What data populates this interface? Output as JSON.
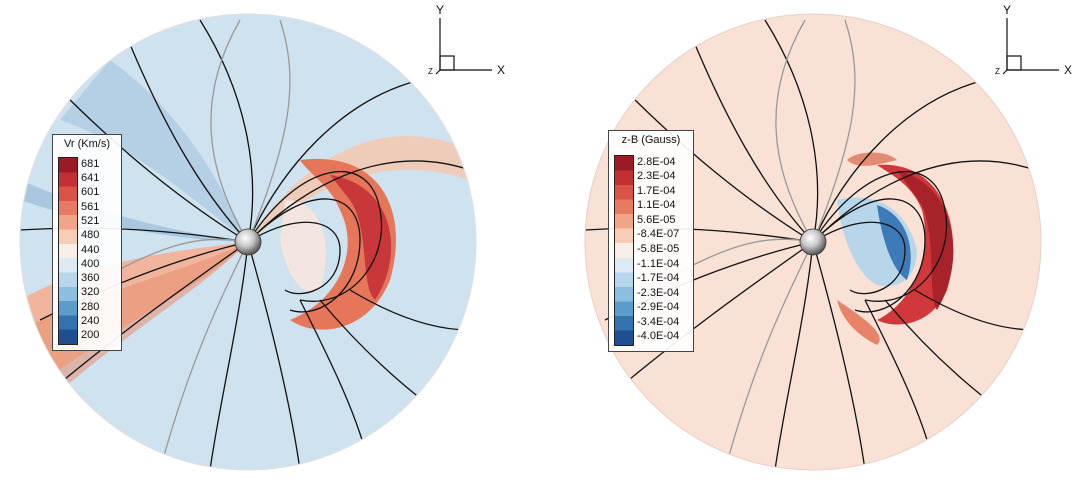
{
  "panels": [
    {
      "id": "left",
      "legend": {
        "title": "Vr (Km/s)",
        "ticks": [
          "681",
          "641",
          "601",
          "561",
          "521",
          "480",
          "440",
          "400",
          "360",
          "320",
          "280",
          "240",
          "200"
        ],
        "colors": [
          "#9b1b25",
          "#c42f33",
          "#d95347",
          "#e77b62",
          "#f2a487",
          "#f8cdb6",
          "#f7eee8",
          "#ddeaf3",
          "#b8d6ea",
          "#8cbfdf",
          "#5b9cca",
          "#3572b0",
          "#1f4f8f"
        ]
      },
      "axes": {
        "y": "Y",
        "x": "X",
        "z": "Z"
      }
    },
    {
      "id": "right",
      "legend": {
        "title": "z-B (Gauss)",
        "ticks": [
          "2.8E-04",
          "2.3E-04",
          "1.7E-04",
          "1.1E-04",
          "5.6E-05",
          "-8.4E-07",
          "-5.8E-05",
          "-1.1E-04",
          "-1.7E-04",
          "-2.3E-04",
          "-2.9E-04",
          "-3.4E-04",
          "-4.0E-04"
        ],
        "colors": [
          "#9b1b25",
          "#c42f33",
          "#d95347",
          "#e77b62",
          "#f2a487",
          "#f8cdb6",
          "#f7eee8",
          "#ddeaf3",
          "#b8d6ea",
          "#8cbfdf",
          "#5b9cca",
          "#3572b0",
          "#1f4f8f"
        ]
      },
      "axes": {
        "y": "Y",
        "x": "X",
        "z": "Z"
      }
    }
  ]
}
